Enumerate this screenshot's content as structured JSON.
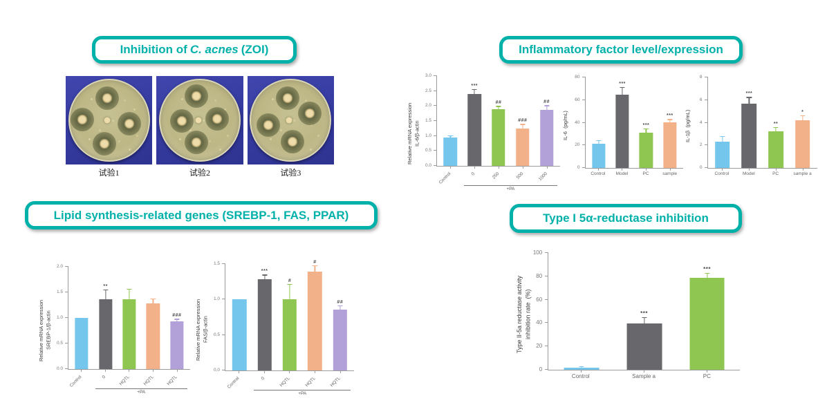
{
  "palette": {
    "teal": "#00b1a9",
    "blue": "#74c6ec",
    "gray": "#68686c",
    "green": "#8fc651",
    "orange": "#f2b189",
    "purple": "#b2a0d8",
    "axis": "#9a9a9a",
    "sig": "#4a4a4a"
  },
  "headers": {
    "zoi": {
      "prefix": "Inhibition of",
      "italic": "C. acnes",
      "suffix": " (ZOI)"
    },
    "inflammatory": {
      "text": "Inflammatory factor level/expression"
    },
    "lipid": {
      "text": "Lipid synthesis-related genes  (SREBP-1, FAS, PPAR)"
    },
    "reductase": {
      "text": "Type I 5α-reductase inhibition"
    }
  },
  "petri": {
    "labels": [
      "试验1",
      "试验2",
      "试验3"
    ]
  },
  "chart_data": [
    {
      "id": "il6-mrna",
      "type": "bar",
      "ylabel_lines": [
        "Relative mRNA expression",
        "IL-6/β-actin"
      ],
      "ylim": [
        0,
        3.0
      ],
      "yticks": [
        "0.0",
        "0.5",
        "1.0",
        "1.5",
        "2.0",
        "2.5",
        "3.0"
      ],
      "categories": [
        "Control",
        "0",
        "250",
        "500",
        "1000"
      ],
      "values": [
        0.95,
        2.4,
        1.9,
        1.25,
        1.87
      ],
      "errors": [
        0.05,
        0.15,
        0.08,
        0.13,
        0.13
      ],
      "sig": [
        "",
        "***",
        "##",
        "###",
        "##"
      ],
      "colors": [
        "blue",
        "gray",
        "green",
        "orange",
        "purple"
      ],
      "rotate_xlabels": true,
      "group": {
        "label": "+PA",
        "from": 1,
        "to": 4
      }
    },
    {
      "id": "il6-level",
      "type": "bar",
      "ylabel_lines": [
        "IL-6  (pg/mL)"
      ],
      "ylim": [
        0,
        80
      ],
      "yticks": [
        "0",
        "20",
        "40",
        "60",
        "80"
      ],
      "categories": [
        "Control",
        "Model",
        "PC",
        "sample"
      ],
      "values": [
        21.5,
        65,
        31,
        40.5
      ],
      "errors": [
        2.5,
        6,
        3.5,
        2
      ],
      "sig": [
        "",
        "***",
        "***",
        "***"
      ],
      "colors": [
        "blue",
        "gray",
        "green",
        "orange"
      ],
      "rotate_xlabels": false
    },
    {
      "id": "il1b-level",
      "type": "bar",
      "ylabel_lines": [
        "IL-1β  (pg/mL)"
      ],
      "ylim": [
        0,
        8
      ],
      "yticks": [
        "0",
        "2",
        "4",
        "6",
        "8"
      ],
      "categories": [
        "Control",
        "Model",
        "PC",
        "sample a"
      ],
      "values": [
        2.3,
        5.7,
        3.25,
        4.2
      ],
      "errors": [
        0.45,
        0.5,
        0.3,
        0.4
      ],
      "sig": [
        "",
        "***",
        "**",
        "*"
      ],
      "colors": [
        "blue",
        "gray",
        "green",
        "orange"
      ],
      "rotate_xlabels": false
    },
    {
      "id": "srebp1-mrna",
      "type": "bar",
      "ylabel_lines": [
        "Relative mRNA expression",
        "SREBP-1/β-actin"
      ],
      "ylim": [
        0,
        2.0
      ],
      "yticks": [
        "0.0",
        "0.5",
        "1.0",
        "1.5",
        "2.0"
      ],
      "categories": [
        "Control",
        "0",
        "HQTL",
        "HQTL",
        "HQTL"
      ],
      "values": [
        1.0,
        1.37,
        1.37,
        1.28,
        0.93
      ],
      "errors": [
        0,
        0.17,
        0.19,
        0.09,
        0.04
      ],
      "sig": [
        "",
        "**",
        "",
        "",
        "###"
      ],
      "colors": [
        "blue",
        "gray",
        "green",
        "orange",
        "purple"
      ],
      "rotate_xlabels": true,
      "group": {
        "label": "+PA",
        "from": 1,
        "to": 4
      }
    },
    {
      "id": "fas-mrna",
      "type": "bar",
      "ylabel_lines": [
        "Relative mRNA expression",
        "FAS/β-actin"
      ],
      "ylim": [
        0,
        1.5
      ],
      "yticks": [
        "0.0",
        "0.5",
        "1.0",
        "1.5"
      ],
      "categories": [
        "Control",
        "0",
        "HQTL",
        "HQTL",
        "HQTL"
      ],
      "values": [
        1.0,
        1.29,
        1.0,
        1.39,
        0.86
      ],
      "errors": [
        0,
        0.05,
        0.21,
        0.08,
        0.05
      ],
      "sig": [
        "",
        "***",
        "#",
        "#",
        "##"
      ],
      "colors": [
        "blue",
        "gray",
        "green",
        "orange",
        "purple"
      ],
      "rotate_xlabels": true,
      "group": {
        "label": "+PA",
        "from": 1,
        "to": 4
      }
    },
    {
      "id": "reductase-inhibition",
      "type": "bar",
      "ylabel_lines": [
        "Type II-5a reductase activity",
        "inhibition rate  (%)"
      ],
      "ylim": [
        0,
        100
      ],
      "yticks": [
        "0",
        "20",
        "40",
        "60",
        "80",
        "100"
      ],
      "categories": [
        "Control",
        "Sample a",
        "PC"
      ],
      "values": [
        1.5,
        39.5,
        79
      ],
      "errors": [
        1,
        5,
        3.5
      ],
      "sig": [
        "",
        "***",
        "***"
      ],
      "colors": [
        "blue",
        "gray",
        "green"
      ],
      "rotate_xlabels": false
    }
  ]
}
